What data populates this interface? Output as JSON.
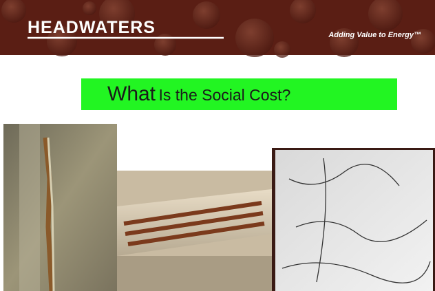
{
  "header": {
    "logo": "HEADWATERS",
    "tagline": "Adding Value to Energy™"
  },
  "title": {
    "lead": "What",
    "rest": "Is the Social Cost?"
  }
}
